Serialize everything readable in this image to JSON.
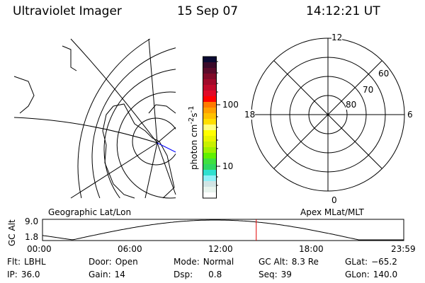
{
  "header": {
    "instrument": "Ultraviolet Imager",
    "date": "15 Sep 07",
    "time": "14:12:21 UT"
  },
  "colorbar": {
    "label": "photon cm",
    "label_sup1": "-2",
    "label_mid": "s",
    "label_sup2": "-1",
    "ticks": [
      "100",
      "10"
    ],
    "scale": "log",
    "colors": [
      "#0a0a33",
      "#3a0a2a",
      "#5a0a2a",
      "#800a28",
      "#a00a2a",
      "#c00a2a",
      "#e00a28",
      "#ff0000",
      "#ff7a00",
      "#ffa000",
      "#ffc000",
      "#ffdf00",
      "#ffff80",
      "#ffff00",
      "#e8f500",
      "#c8f000",
      "#a0f000",
      "#60f000",
      "#40e040",
      "#30d860",
      "#30e0d0",
      "#90f0f8",
      "#d0e4e4",
      "#e8f4ee",
      "#ffffff"
    ]
  },
  "geo_map": {
    "label": "Geographic Lat/Lon",
    "track_color": "#0000ff"
  },
  "polar_map": {
    "label": "Apex MLat/MLT",
    "mlt_labels": [
      "12",
      "18",
      "6",
      "0"
    ],
    "mlat_labels": [
      "60",
      "70",
      "80"
    ]
  },
  "altitude_plot": {
    "ylabel": "GC Alt",
    "yticks": [
      "9.0",
      "1.8"
    ],
    "ylim": [
      1.8,
      9.0
    ],
    "xticks": [
      "00:00",
      "06:00",
      "12:00",
      "18:00",
      "23:59"
    ],
    "current_time_hours": 14.2,
    "marker_color": "#e00000"
  },
  "status": [
    {
      "label": "Flt:",
      "value": "LBHL"
    },
    {
      "label": "Door:",
      "value": "Open"
    },
    {
      "label": "Mode:",
      "value": "Normal"
    },
    {
      "label": "GC Alt:",
      "value": "8.3 Re"
    },
    {
      "label": "GLat:",
      "value": "−65.2"
    },
    {
      "label": "IP:",
      "value": "36.0"
    },
    {
      "label": "Gain:",
      "value": "14"
    },
    {
      "label": "Dsp:",
      "value": "0.8"
    },
    {
      "label": "Seq:",
      "value": "39"
    },
    {
      "label": "GLon:",
      "value": "140.0"
    }
  ]
}
